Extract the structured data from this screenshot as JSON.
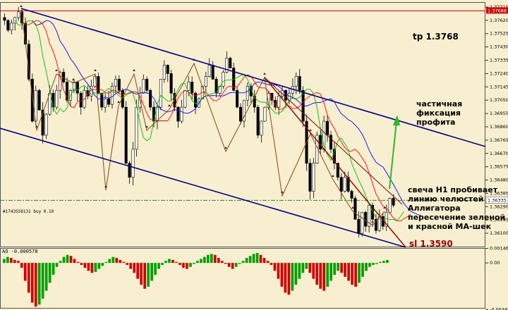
{
  "chart_data": [
    {
      "type": "candlestick",
      "ylim": [
        1.36,
        1.3775
      ],
      "price_ticks": [
        "1.37715",
        "1.37620",
        "1.37525",
        "1.37430",
        "1.37335",
        "1.37240",
        "1.37145",
        "1.37050",
        "1.36955",
        "1.36860",
        "1.36765",
        "1.36670",
        "1.36575",
        "1.36480",
        "1.36385",
        "1.36290",
        "1.36195",
        "1.36100"
      ],
      "tp_line": {
        "label": "1.37688",
        "value": 1.37688,
        "color": "#d00000"
      },
      "current_price": {
        "label": "1.36335",
        "value": 1.36335
      },
      "order_line": {
        "label": "#1743558131 buy 0.10",
        "value": 1.36335
      },
      "channel_color": "#00008b",
      "resistance_color": "#8b0000",
      "alligator": [
        {
          "color": "#0000ff"
        },
        {
          "color": "#ff0000"
        },
        {
          "color": "#00c000"
        }
      ],
      "close_path": [
        1.3762,
        1.3755,
        1.376,
        1.3764,
        1.3768,
        1.376,
        1.3745,
        1.372,
        1.369,
        1.3712,
        1.3698,
        1.368,
        1.3695,
        1.371,
        1.37,
        1.3712,
        1.3725,
        1.3718,
        1.3705,
        1.3712,
        1.3718,
        1.371,
        1.37,
        1.3712,
        1.3708,
        1.3715,
        1.3722,
        1.371,
        1.37,
        1.3706,
        1.3702,
        1.3715,
        1.372,
        1.3712,
        1.37,
        1.366,
        1.365,
        1.367,
        1.37,
        1.371,
        1.372,
        1.3712,
        1.37,
        1.369,
        1.37,
        1.372,
        1.373,
        1.3724,
        1.371,
        1.37,
        1.369,
        1.37,
        1.3712,
        1.3718,
        1.371,
        1.37,
        1.3706,
        1.3715,
        1.3722,
        1.373,
        1.372,
        1.371,
        1.3715,
        1.3725,
        1.3735,
        1.3728,
        1.3712,
        1.37,
        1.369,
        1.3705,
        1.3715,
        1.3708,
        1.37,
        1.368,
        1.369,
        1.37,
        1.371,
        1.3705,
        1.37,
        1.3708,
        1.3712,
        1.3705,
        1.371,
        1.3715,
        1.3722,
        1.3712,
        1.369,
        1.366,
        1.364,
        1.366,
        1.368,
        1.367,
        1.369,
        1.368,
        1.367,
        1.366,
        1.365,
        1.364,
        1.365,
        1.364,
        1.3635,
        1.362,
        1.361,
        1.3625,
        1.3615,
        1.363,
        1.362,
        1.3612,
        1.3622,
        1.3615,
        1.3625,
        1.3635,
        1.363
      ],
      "annotations": [
        {
          "key": "tp",
          "text": "tp 1.3768"
        },
        {
          "key": "partial",
          "lines": [
            "частичная фиксация",
            "профита"
          ]
        },
        {
          "key": "reason",
          "lines": [
            "свеча H1 пробивает",
            "линию челюстей",
            "Аллигатора",
            "пересечение зеленой",
            "и красной МА-шек"
          ]
        },
        {
          "key": "sl",
          "text": "sl 1.3590"
        }
      ]
    },
    {
      "type": "bar",
      "indicator": "AO",
      "title": "AO -0.000578",
      "ylim": [
        -0.0046,
        0.0015
      ],
      "ticks": [
        "0.001462",
        "0.00",
        "-0.004689"
      ],
      "colors": {
        "up": "#00a000",
        "down": "#d00000"
      },
      "values": [
        0.0004,
        0.0006,
        0.0005,
        0.0003,
        0.0002,
        -0.0005,
        -0.0018,
        -0.003,
        -0.004,
        -0.0044,
        -0.0042,
        -0.0036,
        -0.0028,
        -0.002,
        -0.0012,
        -0.0004,
        0.0002,
        0.0006,
        0.0008,
        0.0007,
        0.0004,
        0.0001,
        -0.0002,
        -0.0005,
        -0.0008,
        -0.001,
        -0.0009,
        -0.0006,
        -0.0003,
        0.0001,
        0.0004,
        0.0006,
        0.0005,
        0.0003,
        0.0001,
        -0.0002,
        -0.0006,
        -0.001,
        -0.0016,
        -0.0022,
        -0.0026,
        -0.0024,
        -0.0018,
        -0.0012,
        -0.0006,
        -0.0002,
        0.0002,
        0.0004,
        0.0003,
        0.0001,
        -0.0002,
        -0.0005,
        -0.0006,
        -0.0004,
        -0.0001,
        0.0002,
        0.0004,
        0.0006,
        0.0008,
        0.0009,
        0.0008,
        0.0005,
        0.0002,
        -0.0001,
        -0.0004,
        -0.0006,
        -0.0004,
        -0.0001,
        0.0002,
        0.0005,
        0.0007,
        0.0009,
        0.001,
        0.0008,
        0.0005,
        0.0002,
        -0.0002,
        -0.0008,
        -0.0016,
        -0.0024,
        -0.003,
        -0.0032,
        -0.0028,
        -0.0022,
        -0.0016,
        -0.001,
        -0.0006,
        -0.001,
        -0.0016,
        -0.0022,
        -0.0026,
        -0.0028,
        -0.0024,
        -0.0018,
        -0.0012,
        -0.0008,
        -0.001,
        -0.0014,
        -0.0018,
        -0.0022,
        -0.0024,
        -0.002,
        -0.0014,
        -0.0008,
        -0.0004,
        -0.0002,
        -0.0001,
        0.0001,
        0.0002,
        0.0003
      ]
    }
  ]
}
